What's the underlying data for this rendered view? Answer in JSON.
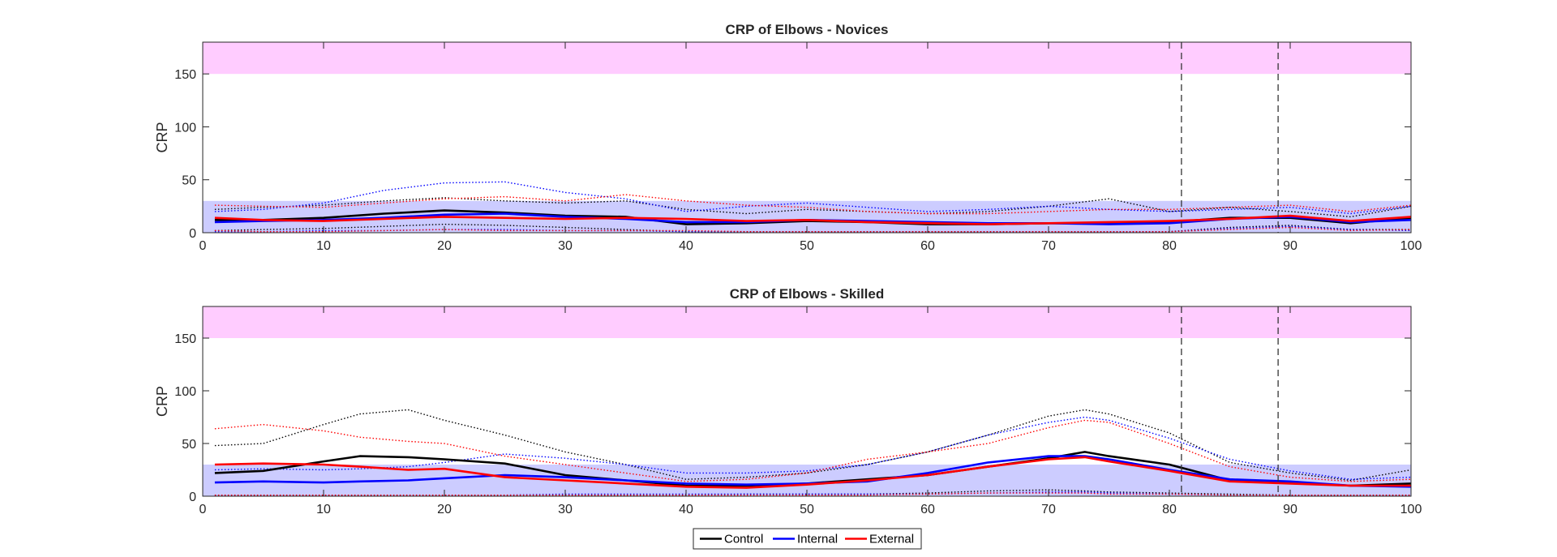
{
  "chart_data": [
    {
      "type": "line",
      "title": "CRP of Elbows - Novices",
      "xlabel": "",
      "ylabel": "CRP",
      "xlim": [
        0,
        100
      ],
      "ylim": [
        0,
        180
      ],
      "xticks": [
        0,
        10,
        20,
        30,
        40,
        50,
        60,
        70,
        80,
        90,
        100
      ],
      "yticks": [
        0,
        50,
        100,
        150
      ],
      "grid": false,
      "bands": [
        {
          "y0": 150,
          "y1": 180,
          "color": "#ffccff"
        },
        {
          "y0": 0,
          "y1": 30,
          "color": "#ccccff"
        }
      ],
      "vlines": [
        81,
        89
      ],
      "series": [
        {
          "name": "Control",
          "color": "#000000",
          "style": "solid",
          "x": [
            1,
            5,
            10,
            15,
            20,
            25,
            30,
            35,
            40,
            45,
            50,
            55,
            60,
            65,
            70,
            75,
            80,
            85,
            90,
            95,
            100
          ],
          "y": [
            12,
            12,
            14,
            18,
            21,
            19,
            16,
            15,
            8,
            9,
            11,
            10,
            8,
            8,
            9,
            9,
            10,
            14,
            14,
            9,
            14
          ]
        },
        {
          "name": "Internal",
          "color": "#0000ff",
          "style": "solid",
          "x": [
            1,
            5,
            10,
            15,
            20,
            25,
            30,
            35,
            40,
            45,
            50,
            55,
            60,
            65,
            70,
            75,
            80,
            85,
            90,
            95,
            100
          ],
          "y": [
            10,
            11,
            12,
            14,
            17,
            18,
            15,
            13,
            10,
            10,
            12,
            11,
            10,
            9,
            9,
            8,
            9,
            13,
            15,
            10,
            12
          ]
        },
        {
          "name": "External",
          "color": "#ff0000",
          "style": "solid",
          "x": [
            1,
            5,
            10,
            15,
            20,
            25,
            30,
            35,
            40,
            45,
            50,
            55,
            60,
            65,
            70,
            75,
            80,
            85,
            90,
            95,
            100
          ],
          "y": [
            14,
            12,
            11,
            13,
            15,
            14,
            13,
            14,
            13,
            11,
            12,
            10,
            9,
            8,
            9,
            10,
            11,
            13,
            16,
            11,
            15
          ]
        },
        {
          "color": "#000000",
          "style": "dotted",
          "x": [
            1,
            5,
            10,
            15,
            20,
            25,
            30,
            35,
            40,
            45,
            50,
            55,
            60,
            65,
            70,
            75,
            80,
            85,
            90,
            95,
            100
          ],
          "y": [
            22,
            24,
            26,
            30,
            33,
            30,
            28,
            30,
            22,
            18,
            22,
            20,
            18,
            20,
            25,
            32,
            20,
            24,
            20,
            15,
            25
          ]
        },
        {
          "color": "#000000",
          "style": "dotted",
          "x": [
            1,
            5,
            10,
            15,
            20,
            25,
            30,
            35,
            40,
            45,
            50,
            55,
            60,
            65,
            70,
            75,
            80,
            85,
            90,
            95,
            100
          ],
          "y": [
            2,
            3,
            4,
            6,
            8,
            7,
            5,
            3,
            1,
            1,
            1,
            1,
            1,
            1,
            1,
            1,
            1,
            5,
            7,
            3,
            3
          ]
        },
        {
          "color": "#0000ff",
          "style": "dotted",
          "x": [
            1,
            5,
            10,
            15,
            20,
            25,
            30,
            35,
            40,
            45,
            50,
            55,
            60,
            65,
            70,
            75,
            80,
            85,
            90,
            95,
            100
          ],
          "y": [
            20,
            22,
            28,
            40,
            47,
            48,
            38,
            32,
            20,
            25,
            28,
            24,
            20,
            22,
            25,
            22,
            20,
            22,
            24,
            18,
            25
          ]
        },
        {
          "color": "#0000ff",
          "style": "dotted",
          "x": [
            1,
            5,
            10,
            15,
            20,
            25,
            30,
            35,
            40,
            45,
            50,
            55,
            60,
            65,
            70,
            75,
            80,
            85,
            90,
            95,
            100
          ],
          "y": [
            1,
            1,
            2,
            2,
            3,
            3,
            2,
            2,
            1,
            1,
            1,
            1,
            1,
            1,
            1,
            1,
            1,
            4,
            6,
            3,
            2
          ]
        },
        {
          "color": "#ff0000",
          "style": "dotted",
          "x": [
            1,
            5,
            10,
            15,
            20,
            25,
            30,
            35,
            40,
            45,
            50,
            55,
            60,
            65,
            70,
            75,
            80,
            85,
            90,
            95,
            100
          ],
          "y": [
            26,
            25,
            24,
            28,
            32,
            34,
            30,
            36,
            30,
            26,
            24,
            20,
            18,
            18,
            20,
            22,
            22,
            24,
            26,
            20,
            26
          ]
        },
        {
          "color": "#ff0000",
          "style": "dotted",
          "x": [
            1,
            5,
            10,
            15,
            20,
            25,
            30,
            35,
            40,
            45,
            50,
            55,
            60,
            65,
            70,
            75,
            80,
            85,
            90,
            95,
            100
          ],
          "y": [
            2,
            1,
            1,
            2,
            3,
            2,
            2,
            2,
            2,
            1,
            1,
            1,
            1,
            1,
            1,
            1,
            1,
            3,
            5,
            2,
            3
          ]
        }
      ]
    },
    {
      "type": "line",
      "title": "CRP of Elbows - Skilled",
      "xlabel": "",
      "ylabel": "CRP",
      "xlim": [
        0,
        100
      ],
      "ylim": [
        0,
        180
      ],
      "xticks": [
        0,
        10,
        20,
        30,
        40,
        50,
        60,
        70,
        80,
        90,
        100
      ],
      "yticks": [
        0,
        50,
        100,
        150
      ],
      "grid": false,
      "bands": [
        {
          "y0": 150,
          "y1": 180,
          "color": "#ffccff"
        },
        {
          "y0": 0,
          "y1": 30,
          "color": "#ccccff"
        }
      ],
      "vlines": [
        81,
        89
      ],
      "series": [
        {
          "name": "Control",
          "color": "#000000",
          "style": "solid",
          "x": [
            1,
            5,
            10,
            13,
            17,
            20,
            25,
            30,
            35,
            40,
            45,
            50,
            55,
            60,
            65,
            70,
            73,
            75,
            80,
            85,
            90,
            95,
            100
          ],
          "y": [
            22,
            24,
            33,
            38,
            37,
            35,
            31,
            20,
            15,
            10,
            10,
            12,
            16,
            20,
            28,
            36,
            42,
            38,
            30,
            15,
            13,
            10,
            12
          ]
        },
        {
          "name": "Internal",
          "color": "#0000ff",
          "style": "solid",
          "x": [
            1,
            5,
            10,
            13,
            17,
            20,
            25,
            30,
            35,
            40,
            45,
            50,
            55,
            60,
            65,
            70,
            73,
            75,
            80,
            85,
            90,
            95,
            100
          ],
          "y": [
            13,
            14,
            13,
            14,
            15,
            17,
            20,
            18,
            15,
            12,
            11,
            12,
            14,
            22,
            32,
            38,
            38,
            35,
            25,
            16,
            14,
            10,
            9
          ]
        },
        {
          "name": "External",
          "color": "#ff0000",
          "style": "solid",
          "x": [
            1,
            5,
            10,
            13,
            17,
            20,
            25,
            30,
            35,
            40,
            45,
            50,
            55,
            60,
            65,
            70,
            73,
            75,
            80,
            85,
            90,
            95,
            100
          ],
          "y": [
            30,
            31,
            30,
            28,
            25,
            26,
            18,
            15,
            12,
            9,
            8,
            11,
            15,
            20,
            28,
            35,
            37,
            33,
            24,
            14,
            12,
            10,
            10
          ]
        },
        {
          "color": "#000000",
          "style": "dotted",
          "x": [
            1,
            5,
            10,
            13,
            17,
            20,
            25,
            30,
            35,
            40,
            45,
            50,
            55,
            60,
            65,
            70,
            73,
            75,
            80,
            85,
            90,
            95,
            100
          ],
          "y": [
            48,
            50,
            68,
            78,
            82,
            72,
            58,
            42,
            30,
            16,
            18,
            22,
            30,
            42,
            58,
            76,
            82,
            78,
            60,
            32,
            22,
            15,
            25
          ]
        },
        {
          "color": "#000000",
          "style": "dotted",
          "x": [
            1,
            5,
            10,
            13,
            17,
            20,
            25,
            30,
            35,
            40,
            45,
            50,
            55,
            60,
            65,
            70,
            73,
            75,
            80,
            85,
            90,
            95,
            100
          ],
          "y": [
            1,
            1,
            1,
            1,
            1,
            1,
            1,
            1,
            1,
            1,
            2,
            2,
            2,
            3,
            5,
            6,
            5,
            4,
            3,
            2,
            1,
            1,
            1
          ]
        },
        {
          "color": "#0000ff",
          "style": "dotted",
          "x": [
            1,
            5,
            10,
            13,
            17,
            20,
            25,
            30,
            35,
            40,
            45,
            50,
            55,
            60,
            65,
            70,
            73,
            75,
            80,
            85,
            90,
            95,
            100
          ],
          "y": [
            25,
            26,
            25,
            26,
            28,
            32,
            40,
            36,
            30,
            22,
            22,
            24,
            30,
            42,
            58,
            70,
            75,
            72,
            55,
            35,
            24,
            16,
            18
          ]
        },
        {
          "color": "#0000ff",
          "style": "dotted",
          "x": [
            1,
            5,
            10,
            13,
            17,
            20,
            25,
            30,
            35,
            40,
            45,
            50,
            55,
            60,
            65,
            70,
            73,
            75,
            80,
            85,
            90,
            95,
            100
          ],
          "y": [
            1,
            1,
            1,
            1,
            1,
            1,
            1,
            2,
            2,
            2,
            2,
            2,
            2,
            2,
            3,
            4,
            4,
            3,
            2,
            1,
            1,
            1,
            1
          ]
        },
        {
          "color": "#ff0000",
          "style": "dotted",
          "x": [
            1,
            5,
            10,
            13,
            17,
            20,
            25,
            30,
            35,
            40,
            45,
            50,
            55,
            60,
            65,
            70,
            73,
            75,
            80,
            85,
            90,
            95,
            100
          ],
          "y": [
            64,
            68,
            62,
            56,
            52,
            50,
            38,
            30,
            22,
            14,
            16,
            22,
            35,
            42,
            50,
            65,
            72,
            70,
            50,
            28,
            18,
            14,
            16
          ]
        },
        {
          "color": "#ff0000",
          "style": "dotted",
          "x": [
            1,
            5,
            10,
            13,
            17,
            20,
            25,
            30,
            35,
            40,
            45,
            50,
            55,
            60,
            65,
            70,
            73,
            75,
            80,
            85,
            90,
            95,
            100
          ],
          "y": [
            1,
            1,
            1,
            1,
            1,
            1,
            1,
            1,
            1,
            1,
            1,
            1,
            1,
            2,
            3,
            3,
            3,
            2,
            2,
            1,
            1,
            1,
            1
          ]
        }
      ]
    }
  ],
  "legend": {
    "placement": "bottom",
    "items": [
      {
        "label": "Control",
        "color": "#000000"
      },
      {
        "label": "Internal",
        "color": "#0000ff"
      },
      {
        "label": "External",
        "color": "#ff0000"
      }
    ]
  }
}
